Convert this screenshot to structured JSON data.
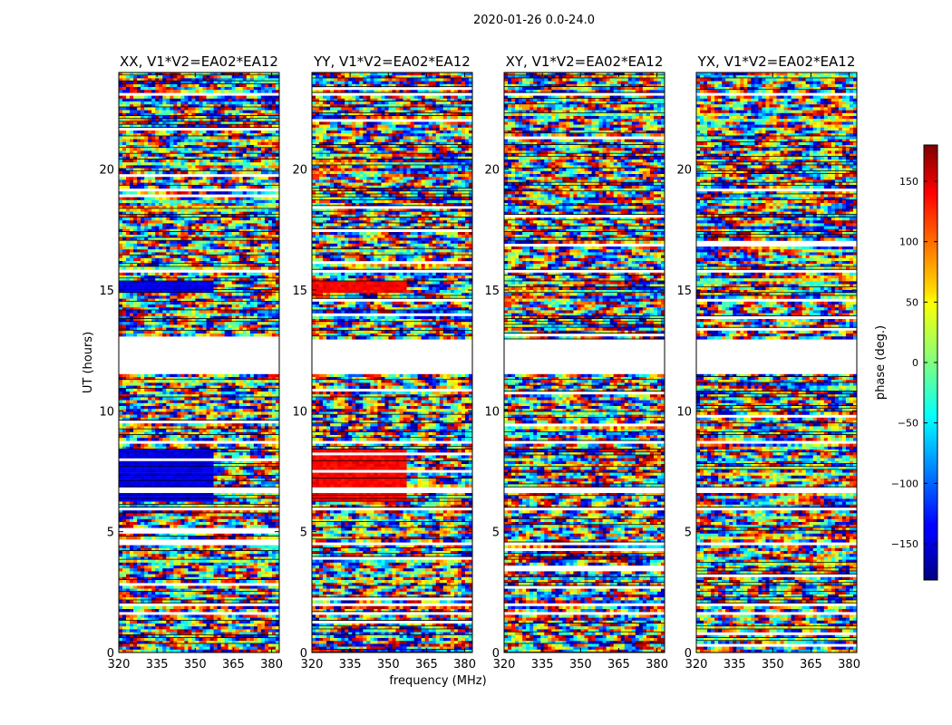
{
  "figure": {
    "suptitle": "2020-01-26 0.0-24.0"
  },
  "chart_data": {
    "type": "heatmap",
    "xlabel": "frequency (MHz)",
    "ylabel": "UT (hours)",
    "xlim": [
      320,
      383
    ],
    "ylim": [
      0,
      24
    ],
    "xticks": [
      320,
      335,
      350,
      365,
      380
    ],
    "yticks": [
      0,
      5,
      10,
      15,
      20
    ],
    "colorbar": {
      "label": "phase (deg.)",
      "range": [
        -180,
        180
      ],
      "ticks": [
        -150,
        -100,
        -50,
        0,
        50,
        100,
        150
      ],
      "tick_labels": [
        "−150",
        "−100",
        "−50",
        "0",
        "50",
        "100",
        "150"
      ],
      "colormap": "jet"
    },
    "panels": [
      {
        "title": "XX, V1*V2=EA02*EA12",
        "polarization": "XX"
      },
      {
        "title": "YY, V1*V2=EA02*EA12",
        "polarization": "YY"
      },
      {
        "title": "XY, V1*V2=EA02*EA12",
        "polarization": "XY"
      },
      {
        "title": "YX, V1*V2=EA02*EA12",
        "polarization": "YX"
      }
    ],
    "flagged_ut_ranges": [
      [
        1.55,
        1.65
      ],
      [
        1.95,
        2.05
      ],
      [
        4.45,
        4.55
      ],
      [
        5.85,
        6.0
      ],
      [
        6.6,
        6.8
      ],
      [
        8.6,
        8.75
      ],
      [
        11.55,
        12.9
      ],
      [
        15.7,
        15.85
      ],
      [
        23.05,
        23.15
      ]
    ]
  }
}
